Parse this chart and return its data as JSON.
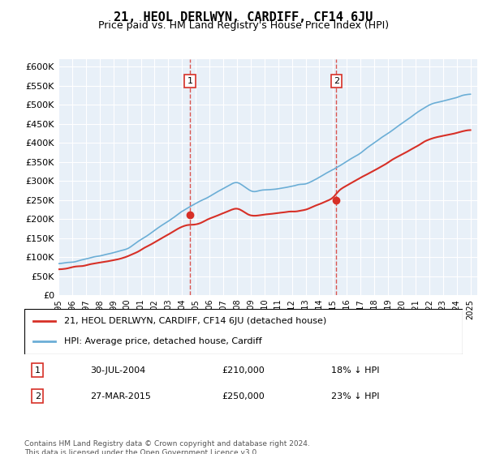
{
  "title": "21, HEOL DERLWYN, CARDIFF, CF14 6JU",
  "subtitle": "Price paid vs. HM Land Registry's House Price Index (HPI)",
  "ylabel_ticks": [
    "£0",
    "£50K",
    "£100K",
    "£150K",
    "£200K",
    "£250K",
    "£300K",
    "£350K",
    "£400K",
    "£450K",
    "£500K",
    "£550K",
    "£600K"
  ],
  "ytick_values": [
    0,
    50000,
    100000,
    150000,
    200000,
    250000,
    300000,
    350000,
    400000,
    450000,
    500000,
    550000,
    600000
  ],
  "ylim": [
    0,
    620000
  ],
  "hpi_color": "#6baed6",
  "property_color": "#d73027",
  "marker1_date_num": 2004.58,
  "marker1_price": 210000,
  "marker2_date_num": 2015.24,
  "marker2_price": 250000,
  "legend_property": "21, HEOL DERLWYN, CARDIFF, CF14 6JU (detached house)",
  "legend_hpi": "HPI: Average price, detached house, Cardiff",
  "sale1_date": "30-JUL-2004",
  "sale1_price": "£210,000",
  "sale1_hpi": "18% ↓ HPI",
  "sale2_date": "27-MAR-2015",
  "sale2_price": "£250,000",
  "sale2_hpi": "23% ↓ HPI",
  "footnote": "Contains HM Land Registry data © Crown copyright and database right 2024.\nThis data is licensed under the Open Government Licence v3.0.",
  "background_color": "#e8f0f8",
  "plot_bg": "#e8f0f8"
}
